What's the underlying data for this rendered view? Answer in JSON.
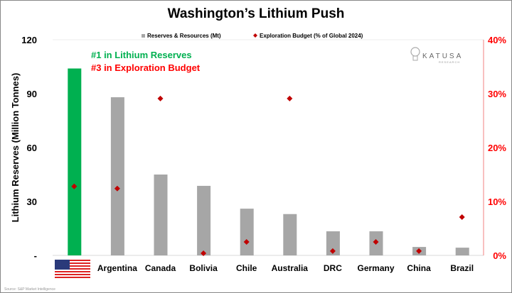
{
  "chart_data": {
    "type": "bar",
    "title": "Washington’s Lithium Push",
    "legend": {
      "bars": "Reserves & Resources (Mt)",
      "points": "Exploration Budget (% of Global 2024)",
      "placement": "top-center"
    },
    "ylabel": "Lithium Reserves (Million Tonnes)",
    "ylim": [
      0,
      120
    ],
    "yticks": [
      "-",
      "30",
      "60",
      "90",
      "120"
    ],
    "y2lim": [
      0,
      40
    ],
    "y2ticks": [
      "0%",
      "10%",
      "20%",
      "30%",
      "40%"
    ],
    "categories": [
      "United States",
      "Argentina",
      "Canada",
      "Bolivia",
      "Chile",
      "Australia",
      "DRC",
      "Germany",
      "China",
      "Brazil"
    ],
    "series": [
      {
        "name": "Reserves & Resources (Mt)",
        "type": "bar",
        "values": [
          104,
          88,
          45,
          38.7,
          26,
          23,
          13.4,
          13.4,
          4.7,
          4.3
        ]
      },
      {
        "name": "Exploration Budget (% of Global 2024)",
        "type": "scatter",
        "axis": "right",
        "values": [
          12.8,
          12.4,
          29.1,
          0.4,
          2.5,
          29.1,
          0.8,
          2.5,
          0.8,
          7.1
        ]
      }
    ],
    "annotations": [
      "#1 in Lithium Reserves",
      "#3 in Exploration Budget"
    ],
    "logo": "KATUSA RESEARCH",
    "source": "Source: S&P Market Intelligence",
    "colors": {
      "bar": "#a6a6a6",
      "highlight": "#00b050",
      "point": "#c00000",
      "right_axis": "#ff0000"
    }
  }
}
